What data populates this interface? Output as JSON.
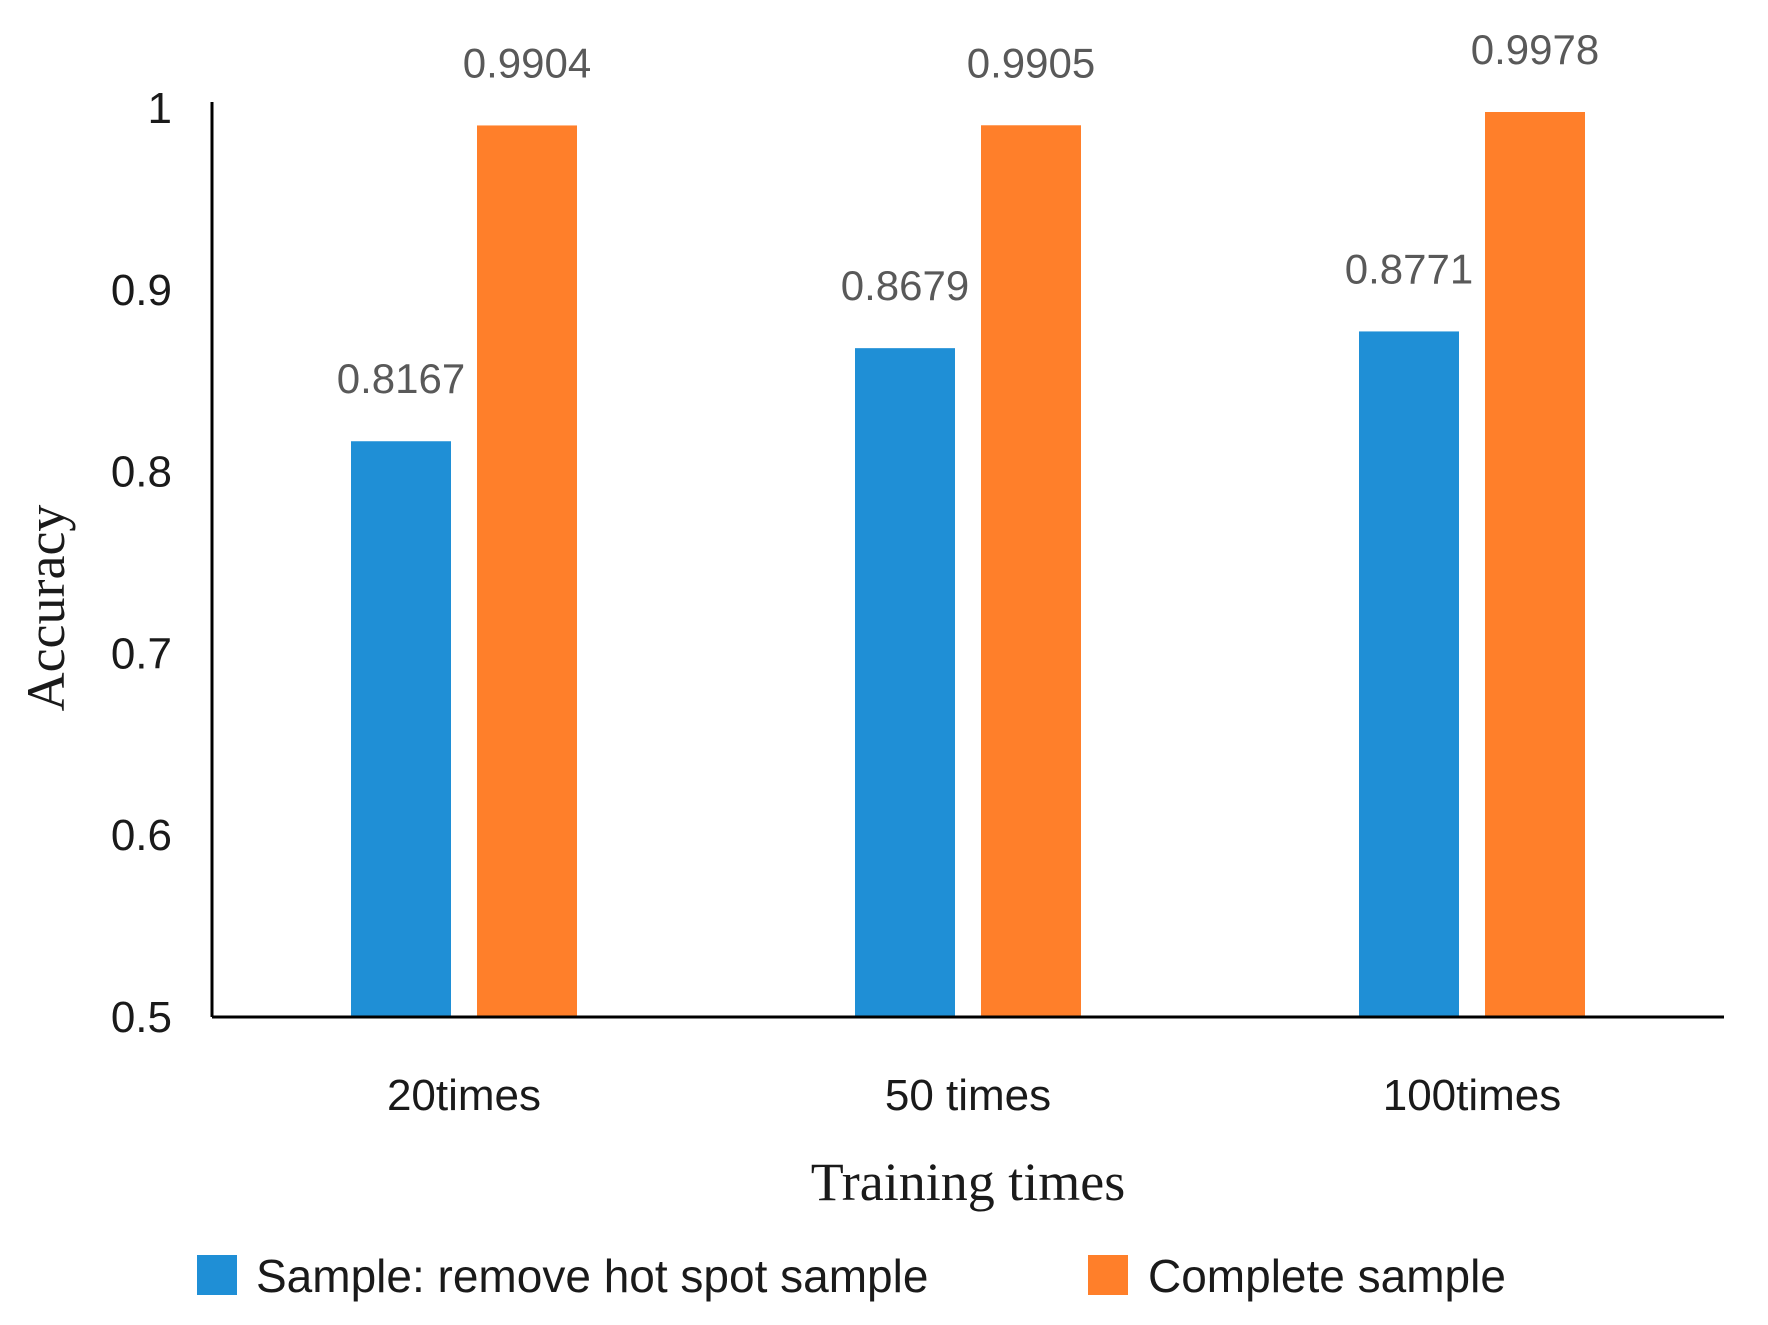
{
  "chart_data": {
    "type": "bar",
    "title": "",
    "xlabel": "Training times",
    "ylabel": "Accuracy",
    "ylim": [
      0.5,
      1
    ],
    "yticks": [
      "0.5",
      "0.6",
      "0.7",
      "0.8",
      "0.9",
      "1"
    ],
    "categories": [
      "20times",
      "50 times",
      "100times"
    ],
    "series": [
      {
        "name": "Sample: remove hot spot sample",
        "color": "#1f8fd6",
        "values": [
          0.8167,
          0.8679,
          0.8771
        ],
        "labels": [
          "0.8167",
          "0.8679",
          "0.8771"
        ]
      },
      {
        "name": "Complete sample",
        "color": "#ff7f2a",
        "values": [
          0.9904,
          0.9905,
          0.9978
        ],
        "labels": [
          "0.9904",
          "0.9905",
          "0.9978"
        ]
      }
    ],
    "grid": false,
    "legend": "bottom"
  }
}
